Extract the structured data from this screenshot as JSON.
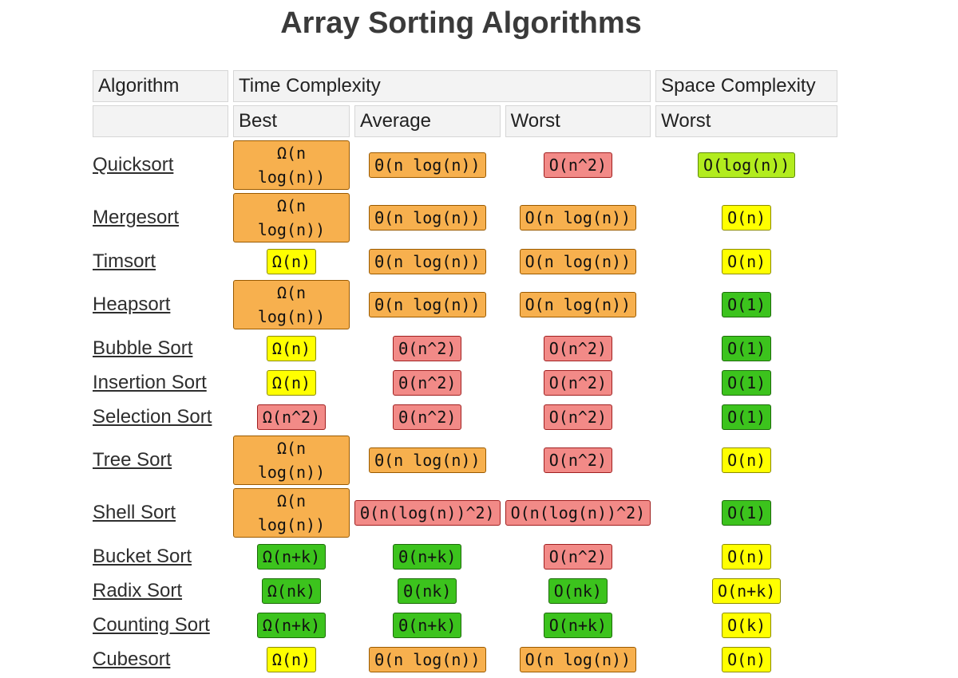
{
  "title": "Array Sorting Algorithms",
  "headers": {
    "algorithm": "Algorithm",
    "time_complexity": "Time Complexity",
    "space_complexity": "Space Complexity",
    "best": "Best",
    "average": "Average",
    "worst": "Worst",
    "space_worst": "Worst"
  },
  "colors": {
    "orange": "#f7b04e",
    "red": "#f28a87",
    "yellow": "#ffff00",
    "green": "#3cc31d",
    "lime": "#b2ec1e"
  },
  "rows": [
    {
      "name": "Quicksort",
      "best": {
        "text": "Ω(n log(n))",
        "color": "orange"
      },
      "average": {
        "text": "Θ(n log(n))",
        "color": "orange"
      },
      "worst": {
        "text": "O(n^2)",
        "color": "red"
      },
      "space": {
        "text": "O(log(n))",
        "color": "lime"
      }
    },
    {
      "name": "Mergesort",
      "best": {
        "text": "Ω(n log(n))",
        "color": "orange"
      },
      "average": {
        "text": "Θ(n log(n))",
        "color": "orange"
      },
      "worst": {
        "text": "O(n log(n))",
        "color": "orange"
      },
      "space": {
        "text": "O(n)",
        "color": "yellow"
      }
    },
    {
      "name": "Timsort",
      "best": {
        "text": "Ω(n)",
        "color": "yellow"
      },
      "average": {
        "text": "Θ(n log(n))",
        "color": "orange"
      },
      "worst": {
        "text": "O(n log(n))",
        "color": "orange"
      },
      "space": {
        "text": "O(n)",
        "color": "yellow"
      }
    },
    {
      "name": "Heapsort",
      "best": {
        "text": "Ω(n log(n))",
        "color": "orange"
      },
      "average": {
        "text": "Θ(n log(n))",
        "color": "orange"
      },
      "worst": {
        "text": "O(n log(n))",
        "color": "orange"
      },
      "space": {
        "text": "O(1)",
        "color": "green"
      }
    },
    {
      "name": "Bubble Sort",
      "best": {
        "text": "Ω(n)",
        "color": "yellow"
      },
      "average": {
        "text": "Θ(n^2)",
        "color": "red"
      },
      "worst": {
        "text": "O(n^2)",
        "color": "red"
      },
      "space": {
        "text": "O(1)",
        "color": "green"
      }
    },
    {
      "name": "Insertion Sort",
      "best": {
        "text": "Ω(n)",
        "color": "yellow"
      },
      "average": {
        "text": "Θ(n^2)",
        "color": "red"
      },
      "worst": {
        "text": "O(n^2)",
        "color": "red"
      },
      "space": {
        "text": "O(1)",
        "color": "green"
      }
    },
    {
      "name": "Selection Sort",
      "best": {
        "text": "Ω(n^2)",
        "color": "red"
      },
      "average": {
        "text": "Θ(n^2)",
        "color": "red"
      },
      "worst": {
        "text": "O(n^2)",
        "color": "red"
      },
      "space": {
        "text": "O(1)",
        "color": "green"
      }
    },
    {
      "name": "Tree Sort",
      "best": {
        "text": "Ω(n log(n))",
        "color": "orange"
      },
      "average": {
        "text": "Θ(n log(n))",
        "color": "orange"
      },
      "worst": {
        "text": "O(n^2)",
        "color": "red"
      },
      "space": {
        "text": "O(n)",
        "color": "yellow"
      }
    },
    {
      "name": "Shell Sort",
      "best": {
        "text": "Ω(n log(n))",
        "color": "orange"
      },
      "average": {
        "text": "Θ(n(log(n))^2)",
        "color": "red"
      },
      "worst": {
        "text": "O(n(log(n))^2)",
        "color": "red"
      },
      "space": {
        "text": "O(1)",
        "color": "green"
      }
    },
    {
      "name": "Bucket Sort",
      "best": {
        "text": "Ω(n+k)",
        "color": "green"
      },
      "average": {
        "text": "Θ(n+k)",
        "color": "green"
      },
      "worst": {
        "text": "O(n^2)",
        "color": "red"
      },
      "space": {
        "text": "O(n)",
        "color": "yellow"
      }
    },
    {
      "name": "Radix Sort",
      "best": {
        "text": "Ω(nk)",
        "color": "green"
      },
      "average": {
        "text": "Θ(nk)",
        "color": "green"
      },
      "worst": {
        "text": "O(nk)",
        "color": "green"
      },
      "space": {
        "text": "O(n+k)",
        "color": "yellow"
      }
    },
    {
      "name": "Counting Sort",
      "best": {
        "text": "Ω(n+k)",
        "color": "green"
      },
      "average": {
        "text": "Θ(n+k)",
        "color": "green"
      },
      "worst": {
        "text": "O(n+k)",
        "color": "green"
      },
      "space": {
        "text": "O(k)",
        "color": "yellow"
      }
    },
    {
      "name": "Cubesort",
      "best": {
        "text": "Ω(n)",
        "color": "yellow"
      },
      "average": {
        "text": "Θ(n log(n))",
        "color": "orange"
      },
      "worst": {
        "text": "O(n log(n))",
        "color": "orange"
      },
      "space": {
        "text": "O(n)",
        "color": "yellow"
      }
    }
  ]
}
